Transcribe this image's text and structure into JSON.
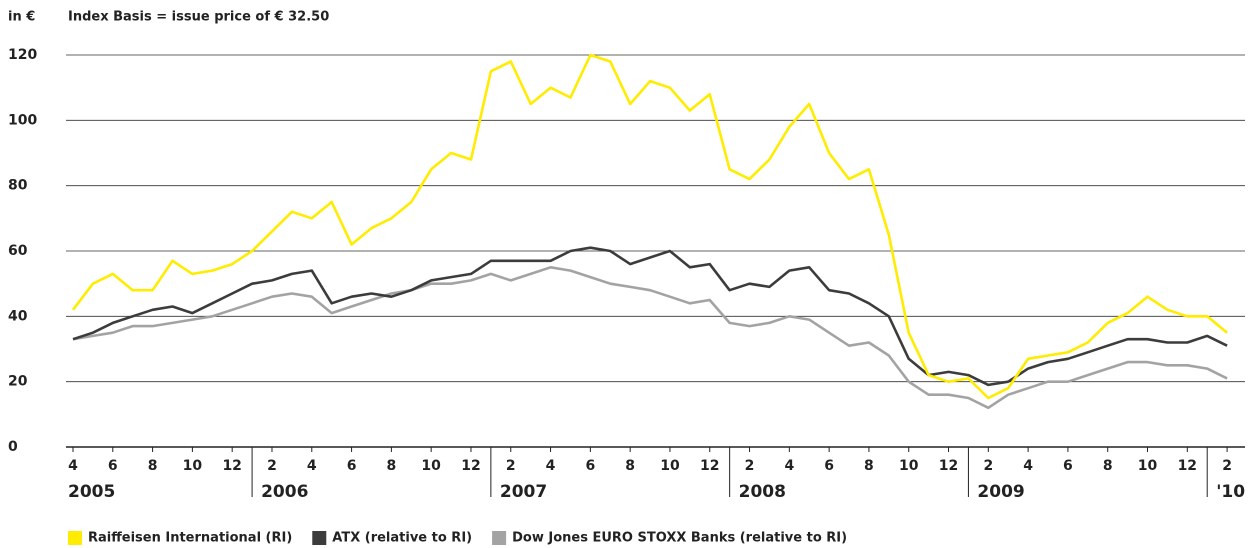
{
  "chart_data": {
    "type": "line",
    "y_label": "in €",
    "subtitle": "Index Basis = issue price of € 32.50",
    "x": [
      "2005-04",
      "2005-05",
      "2005-06",
      "2005-07",
      "2005-08",
      "2005-09",
      "2005-10",
      "2005-11",
      "2005-12",
      "2006-01",
      "2006-02",
      "2006-03",
      "2006-04",
      "2006-05",
      "2006-06",
      "2006-07",
      "2006-08",
      "2006-09",
      "2006-10",
      "2006-11",
      "2006-12",
      "2007-01",
      "2007-02",
      "2007-03",
      "2007-04",
      "2007-05",
      "2007-06",
      "2007-07",
      "2007-08",
      "2007-09",
      "2007-10",
      "2007-11",
      "2007-12",
      "2008-01",
      "2008-02",
      "2008-03",
      "2008-04",
      "2008-05",
      "2008-06",
      "2008-07",
      "2008-08",
      "2008-09",
      "2008-10",
      "2008-11",
      "2008-12",
      "2009-01",
      "2009-02",
      "2009-03",
      "2009-04",
      "2009-05",
      "2009-06",
      "2009-07",
      "2009-08",
      "2009-09",
      "2009-10",
      "2009-11",
      "2009-12",
      "2010-01",
      "2010-02"
    ],
    "series": [
      {
        "name": "Dow Jones EURO STOXX Banks (relative to RI)",
        "color": "#a3a3a3",
        "values": [
          33,
          34,
          35,
          37,
          37,
          38,
          39,
          40,
          42,
          44,
          46,
          47,
          46,
          41,
          43,
          45,
          47,
          48,
          50,
          50,
          51,
          53,
          51,
          53,
          55,
          54,
          52,
          50,
          49,
          48,
          46,
          44,
          45,
          38,
          37,
          38,
          40,
          39,
          35,
          31,
          32,
          28,
          20,
          16,
          16,
          15,
          12,
          16,
          18,
          20,
          20,
          22,
          24,
          26,
          26,
          25,
          25,
          24,
          21
        ]
      },
      {
        "name": "ATX (relative to RI)",
        "color": "#3c3c3c",
        "values": [
          33,
          35,
          38,
          40,
          42,
          43,
          41,
          44,
          47,
          50,
          51,
          53,
          54,
          44,
          46,
          47,
          46,
          48,
          51,
          52,
          53,
          57,
          57,
          57,
          57,
          60,
          61,
          60,
          56,
          58,
          60,
          55,
          56,
          48,
          50,
          49,
          54,
          55,
          48,
          47,
          44,
          40,
          27,
          22,
          23,
          22,
          19,
          20,
          24,
          26,
          27,
          29,
          31,
          33,
          33,
          32,
          32,
          34,
          31
        ]
      },
      {
        "name": "Raiffeisen International (RI)",
        "color": "#ffec00",
        "values": [
          42,
          50,
          53,
          48,
          48,
          57,
          53,
          54,
          56,
          60,
          66,
          72,
          70,
          75,
          62,
          67,
          70,
          75,
          85,
          90,
          88,
          115,
          118,
          105,
          110,
          107,
          120,
          118,
          105,
          112,
          110,
          103,
          108,
          85,
          82,
          88,
          98,
          105,
          90,
          82,
          85,
          65,
          35,
          22,
          20,
          21,
          15,
          18,
          27,
          28,
          29,
          32,
          38,
          41,
          46,
          42,
          40,
          40,
          35
        ]
      }
    ],
    "legend_order": [
      2,
      1,
      0
    ],
    "xlim": [
      "2005-04",
      "2010-03"
    ],
    "xticks": [
      {
        "value": "2005-04",
        "label": "4"
      },
      {
        "value": "2005-06",
        "label": "6"
      },
      {
        "value": "2005-08",
        "label": "8"
      },
      {
        "value": "2005-10",
        "label": "10"
      },
      {
        "value": "2005-12",
        "label": "12"
      },
      {
        "value": "2006-02",
        "label": "2"
      },
      {
        "value": "2006-04",
        "label": "4"
      },
      {
        "value": "2006-06",
        "label": "6"
      },
      {
        "value": "2006-08",
        "label": "8"
      },
      {
        "value": "2006-10",
        "label": "10"
      },
      {
        "value": "2006-12",
        "label": "12"
      },
      {
        "value": "2007-02",
        "label": "2"
      },
      {
        "value": "2007-04",
        "label": "4"
      },
      {
        "value": "2007-06",
        "label": "6"
      },
      {
        "value": "2007-08",
        "label": "8"
      },
      {
        "value": "2007-10",
        "label": "10"
      },
      {
        "value": "2007-12",
        "label": "12"
      },
      {
        "value": "2008-02",
        "label": "2"
      },
      {
        "value": "2008-04",
        "label": "4"
      },
      {
        "value": "2008-06",
        "label": "6"
      },
      {
        "value": "2008-08",
        "label": "8"
      },
      {
        "value": "2008-10",
        "label": "10"
      },
      {
        "value": "2008-12",
        "label": "12"
      },
      {
        "value": "2009-02",
        "label": "2"
      },
      {
        "value": "2009-04",
        "label": "4"
      },
      {
        "value": "2009-06",
        "label": "6"
      },
      {
        "value": "2009-08",
        "label": "8"
      },
      {
        "value": "2009-10",
        "label": "10"
      },
      {
        "value": "2009-12",
        "label": "12"
      },
      {
        "value": "2010-02",
        "label": "2"
      }
    ],
    "years": [
      2005,
      2006,
      2007,
      2008,
      2009,
      {
        "value": 2010,
        "label": "'10"
      }
    ],
    "ylim": [
      0,
      120
    ],
    "yticks": [
      0,
      20,
      40,
      60,
      80,
      100,
      120
    ],
    "grid": true,
    "legend": "bottom"
  }
}
